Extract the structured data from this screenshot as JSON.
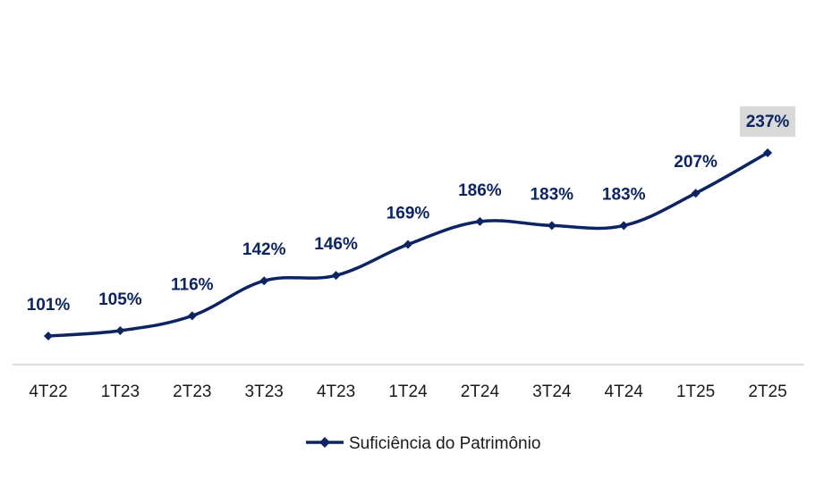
{
  "chart_data": {
    "type": "line",
    "categories": [
      "4T22",
      "1T23",
      "2T23",
      "3T23",
      "4T23",
      "1T24",
      "2T24",
      "3T24",
      "4T24",
      "1T25",
      "2T25"
    ],
    "series": [
      {
        "name": "Suficiência do Patrimônio",
        "values": [
          101,
          105,
          116,
          142,
          146,
          169,
          186,
          183,
          183,
          207,
          237
        ],
        "labels": [
          "101%",
          "105%",
          "116%",
          "142%",
          "146%",
          "169%",
          "186%",
          "183%",
          "183%",
          "207%",
          "237%"
        ]
      }
    ],
    "highlighted_label_index": 10,
    "ylim": [
      80,
      260
    ],
    "grid": false,
    "legend_position": "bottom-center",
    "colors": {
      "series": "#0c2461",
      "axis": "#d0d0d0",
      "highlight_fill": "#d9d9d9"
    }
  }
}
